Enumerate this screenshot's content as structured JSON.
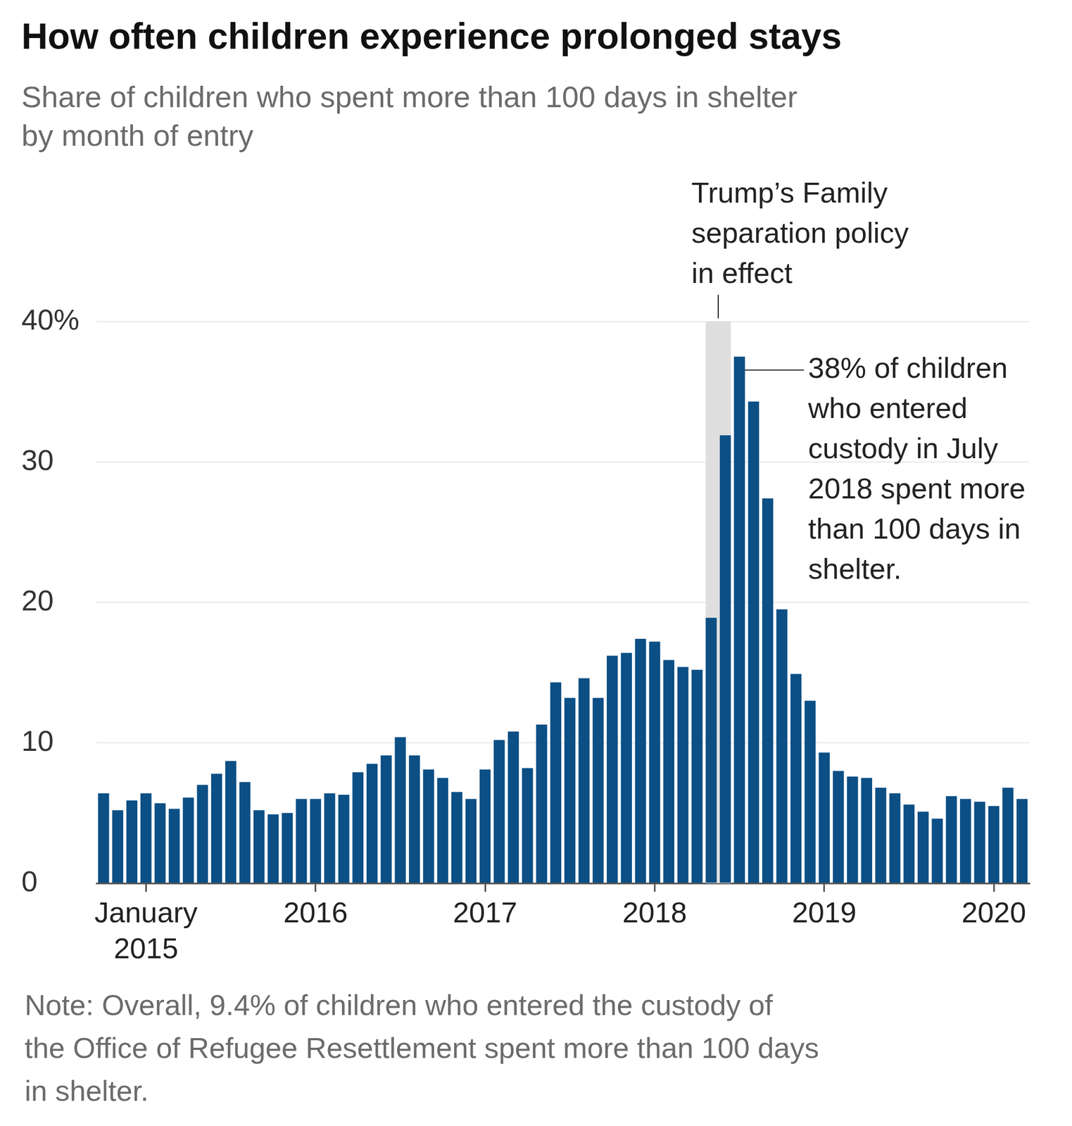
{
  "chart_data": {
    "type": "bar",
    "title": "How often children experience prolonged stays",
    "subtitle": [
      "Share of children who spent more than 100 days in shelter",
      "by month of entry"
    ],
    "categories": [
      null,
      null,
      null,
      "January 2015",
      null,
      null,
      null,
      null,
      null,
      null,
      null,
      null,
      null,
      null,
      null,
      "2016",
      null,
      null,
      null,
      null,
      null,
      null,
      null,
      null,
      null,
      null,
      null,
      "2017",
      null,
      null,
      null,
      null,
      null,
      null,
      null,
      null,
      null,
      null,
      null,
      "2018",
      null,
      null,
      null,
      null,
      null,
      null,
      null,
      null,
      null,
      null,
      null,
      "2019",
      null,
      null,
      null,
      null,
      null,
      null,
      null,
      null,
      null,
      null,
      null,
      "2020",
      null,
      null
    ],
    "values": [
      6.4,
      5.2,
      5.9,
      6.4,
      5.7,
      5.3,
      6.1,
      7.0,
      7.8,
      8.7,
      7.2,
      5.2,
      4.9,
      5.0,
      6.0,
      6.0,
      6.4,
      6.3,
      7.9,
      8.5,
      9.1,
      10.4,
      9.1,
      8.1,
      7.5,
      6.5,
      6.0,
      8.1,
      10.2,
      10.8,
      8.2,
      11.3,
      14.3,
      13.2,
      14.6,
      13.2,
      16.2,
      16.4,
      17.4,
      17.2,
      15.9,
      15.4,
      15.2,
      18.9,
      31.9,
      37.5,
      34.3,
      27.4,
      19.5,
      14.9,
      13.0,
      9.3,
      8.0,
      7.6,
      7.5,
      6.8,
      6.4,
      5.6,
      5.1,
      4.6,
      6.2,
      6.0,
      5.8,
      5.5,
      6.8,
      6.0
    ],
    "color": "#0b4f85",
    "ylim": [
      0,
      40
    ],
    "yticks": [
      0,
      10,
      20,
      30,
      {
        "value": 40,
        "label": "40%"
      }
    ],
    "grid": true,
    "annotations": [
      {
        "text": [
          "Trump’s Family",
          "separation policy",
          "in effect"
        ],
        "from": 43,
        "to": 44
      },
      {
        "text": [
          "38% of children",
          "who entered",
          "custody in July",
          "2018 spent more",
          "than 100 days in",
          "shelter."
        ],
        "at": 45
      }
    ],
    "note": [
      "Note: Overall, 9.4% of children who entered the custody of",
      "the Office of Refugee Resettlement spent more than 100 days",
      "in shelter."
    ]
  }
}
